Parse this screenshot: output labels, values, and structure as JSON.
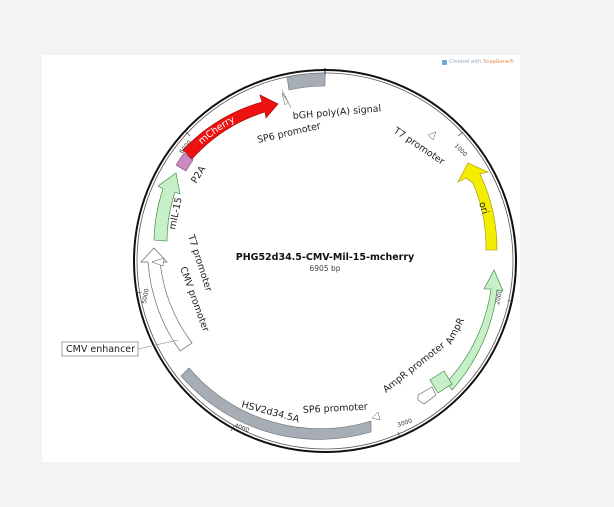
{
  "credit": {
    "prefix": "Created with",
    "brand": "SnapGene®"
  },
  "plasmid": {
    "name": "PHG52d34.5-CMV-Mil-15-mcherry",
    "size": "6905 bp"
  },
  "ticks": [
    "1000",
    "2000",
    "3000",
    "4000",
    "5000",
    "6000"
  ],
  "features": {
    "mcherry": "mCherry",
    "p2a": "P2A",
    "mil15": "mIL-15",
    "ori": "ori",
    "ampr": "AmpR",
    "hsv": "HSV2d34.5A"
  },
  "labels": {
    "bgh": "bGH poly(A) signal",
    "sp6_top": "SP6 promoter",
    "t7_right": "T7 promoter",
    "t7_left": "T7 promoter",
    "cmv_promoter": "CMV promoter",
    "cmv_enhancer": "CMV enhancer",
    "sp6_bottom": "SP6 promoter",
    "ampr_promoter": "AmpR promoter"
  },
  "colors": {
    "mcherry": "#ee1111",
    "p2a": "#c98bbf",
    "mil15": "#c8f0c8",
    "ori": "#f3ee00",
    "ampr": "#c8f0c8",
    "hsv": "#a7adb4",
    "bgh": "#a7adb4"
  }
}
